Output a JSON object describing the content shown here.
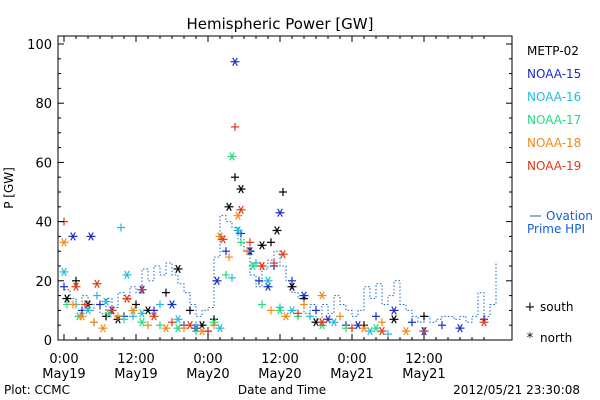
{
  "chart_data": {
    "type": "scatter",
    "title": "Hemispheric Power [GW]",
    "ylabel": "P [GW]",
    "xlabel": "Date and Time",
    "ylim": [
      0,
      100
    ],
    "xlim_hours": [
      0,
      72
    ],
    "yticks": [
      "0",
      "20",
      "40",
      "60",
      "80",
      "100"
    ],
    "xticks": [
      {
        "time": "0:00",
        "date": "May19"
      },
      {
        "time": "12:00",
        "date": "May19"
      },
      {
        "time": "0:00",
        "date": "May20"
      },
      {
        "time": "12:00",
        "date": "May20"
      },
      {
        "time": "0:00",
        "date": "May21"
      },
      {
        "time": "12:00",
        "date": "May21"
      }
    ],
    "legend_placement": "right",
    "markers": {
      "south": "+",
      "north": "*"
    },
    "footer_left": "Plot: CCMC",
    "footer_right": "2012/05/21 23:30:08",
    "ovation": {
      "name_line1": "Ovation",
      "name_line2": "Prime HPI",
      "color": "#1560d0",
      "points": [
        [
          0,
          17
        ],
        [
          1,
          14
        ],
        [
          2,
          12
        ],
        [
          3,
          15
        ],
        [
          4,
          10
        ],
        [
          5,
          12
        ],
        [
          6,
          9
        ],
        [
          7,
          14
        ],
        [
          8,
          11
        ],
        [
          9,
          16
        ],
        [
          10,
          13
        ],
        [
          11,
          18
        ],
        [
          12,
          16
        ],
        [
          13,
          24
        ],
        [
          14,
          20
        ],
        [
          15,
          25
        ],
        [
          16,
          22
        ],
        [
          17,
          26
        ],
        [
          18,
          22
        ],
        [
          19,
          19
        ],
        [
          20,
          16
        ],
        [
          21,
          12
        ],
        [
          22,
          8
        ],
        [
          23,
          10
        ],
        [
          24,
          11
        ],
        [
          25,
          28
        ],
        [
          26,
          42
        ],
        [
          27,
          40
        ],
        [
          28,
          38
        ],
        [
          29,
          34
        ],
        [
          30,
          30
        ],
        [
          31,
          22
        ],
        [
          32,
          18
        ],
        [
          33,
          24
        ],
        [
          34,
          27
        ],
        [
          35,
          30
        ],
        [
          36,
          25
        ],
        [
          37,
          20
        ],
        [
          38,
          16
        ],
        [
          39,
          14
        ],
        [
          40,
          9
        ],
        [
          41,
          12
        ],
        [
          42,
          7
        ],
        [
          43,
          12
        ],
        [
          44,
          9
        ],
        [
          45,
          15
        ],
        [
          46,
          12
        ],
        [
          47,
          10
        ],
        [
          48,
          8
        ],
        [
          49,
          10
        ],
        [
          50,
          18
        ],
        [
          51,
          14
        ],
        [
          52,
          19
        ],
        [
          53,
          12
        ],
        [
          54,
          15
        ],
        [
          55,
          20
        ],
        [
          56,
          12
        ],
        [
          57,
          10
        ],
        [
          58,
          8
        ],
        [
          59,
          6
        ],
        [
          60,
          8
        ],
        [
          61,
          6
        ],
        [
          62,
          7
        ],
        [
          63,
          8
        ],
        [
          64,
          8
        ],
        [
          65,
          7
        ],
        [
          66,
          8
        ],
        [
          67,
          6
        ],
        [
          68,
          8
        ],
        [
          69,
          16
        ],
        [
          70,
          8
        ],
        [
          71,
          12
        ],
        [
          72,
          26
        ]
      ]
    },
    "series": [
      {
        "name": "METP-02",
        "color": "#000000",
        "hemisphere": "mixed",
        "x": [
          0.5,
          2,
          4,
          7,
          9,
          12,
          14,
          17,
          19,
          21,
          23,
          25,
          27.5,
          28.5,
          29.5,
          31,
          33,
          34.5,
          35.5,
          36.5,
          38,
          40,
          42,
          50,
          55,
          60
        ],
        "y": [
          14,
          20,
          12,
          8,
          7,
          12,
          10,
          16,
          24,
          10,
          5,
          7,
          45,
          55,
          51,
          30,
          32,
          33,
          37,
          50,
          18,
          14,
          6,
          5,
          7,
          8
        ]
      },
      {
        "name": "NOAA-15",
        "color": "#1a2dc8",
        "hemisphere": "mixed",
        "x": [
          0,
          1.5,
          3,
          4.5,
          6,
          8,
          10,
          13,
          15,
          18,
          20,
          22,
          24,
          25.5,
          27,
          28.5,
          29.5,
          31,
          32.5,
          34,
          35,
          36,
          38,
          40,
          42,
          44,
          47,
          49,
          52,
          55,
          58,
          60,
          63,
          66,
          70
        ],
        "y": [
          18,
          35,
          10,
          35,
          12,
          10,
          8,
          17,
          10,
          12,
          5,
          4,
          3,
          20,
          30,
          94,
          36,
          30,
          20,
          18,
          25,
          43,
          20,
          15,
          10,
          7,
          5,
          5,
          8,
          10,
          6,
          3,
          5,
          4,
          7
        ]
      },
      {
        "name": "NOAA-16",
        "color": "#22bcdc",
        "hemisphere": "mixed",
        "x": [
          0,
          2,
          4,
          5.5,
          7,
          9.5,
          10.5,
          11.5,
          13,
          16,
          19,
          22,
          26,
          28,
          29,
          32,
          34,
          36,
          38,
          41,
          45,
          48,
          51,
          54
        ],
        "y": [
          23,
          12,
          10,
          15,
          13,
          38,
          22,
          8,
          9,
          12,
          7,
          5,
          4,
          21,
          37,
          26,
          20,
          11,
          10,
          8,
          6,
          4,
          3,
          2
        ]
      },
      {
        "name": "NOAA-17",
        "color": "#22dc84",
        "hemisphere": "mixed",
        "x": [
          0.5,
          2.5,
          5,
          7.5,
          10,
          13,
          16,
          19,
          22,
          25,
          27,
          28,
          29.5,
          31.5,
          33,
          36,
          39,
          43,
          47,
          52
        ],
        "y": [
          12,
          8,
          6,
          9,
          7,
          6,
          5,
          4,
          3,
          6,
          22,
          62,
          33,
          25,
          12,
          10,
          8,
          5,
          4,
          4
        ]
      },
      {
        "name": "NOAA-18",
        "color": "#f08a1a",
        "hemisphere": "mixed",
        "x": [
          0,
          1.5,
          3,
          5,
          6.5,
          9,
          11.5,
          14,
          17,
          20,
          23,
          25,
          26,
          27.5,
          29,
          30.5,
          33,
          34.5,
          37,
          40,
          43,
          46,
          50,
          53,
          57
        ],
        "y": [
          33,
          12,
          8,
          6,
          4,
          8,
          10,
          5,
          4,
          4,
          3,
          5,
          35,
          28,
          42,
          30,
          25,
          10,
          8,
          12,
          15,
          8,
          4,
          6,
          3
        ]
      },
      {
        "name": "NOAA-19",
        "color": "#e03a14",
        "hemisphere": "mixed",
        "x": [
          0,
          2,
          3.5,
          5.5,
          8,
          10.5,
          13,
          15,
          18,
          21,
          24,
          26.5,
          28.5,
          29.5,
          31,
          33,
          35,
          36.5,
          39,
          43,
          48,
          53,
          60,
          70
        ],
        "y": [
          40,
          18,
          12,
          19,
          10,
          14,
          17,
          8,
          6,
          5,
          3,
          34,
          72,
          44,
          33,
          25,
          26,
          29,
          9,
          6,
          4,
          3,
          3,
          6
        ]
      }
    ]
  }
}
